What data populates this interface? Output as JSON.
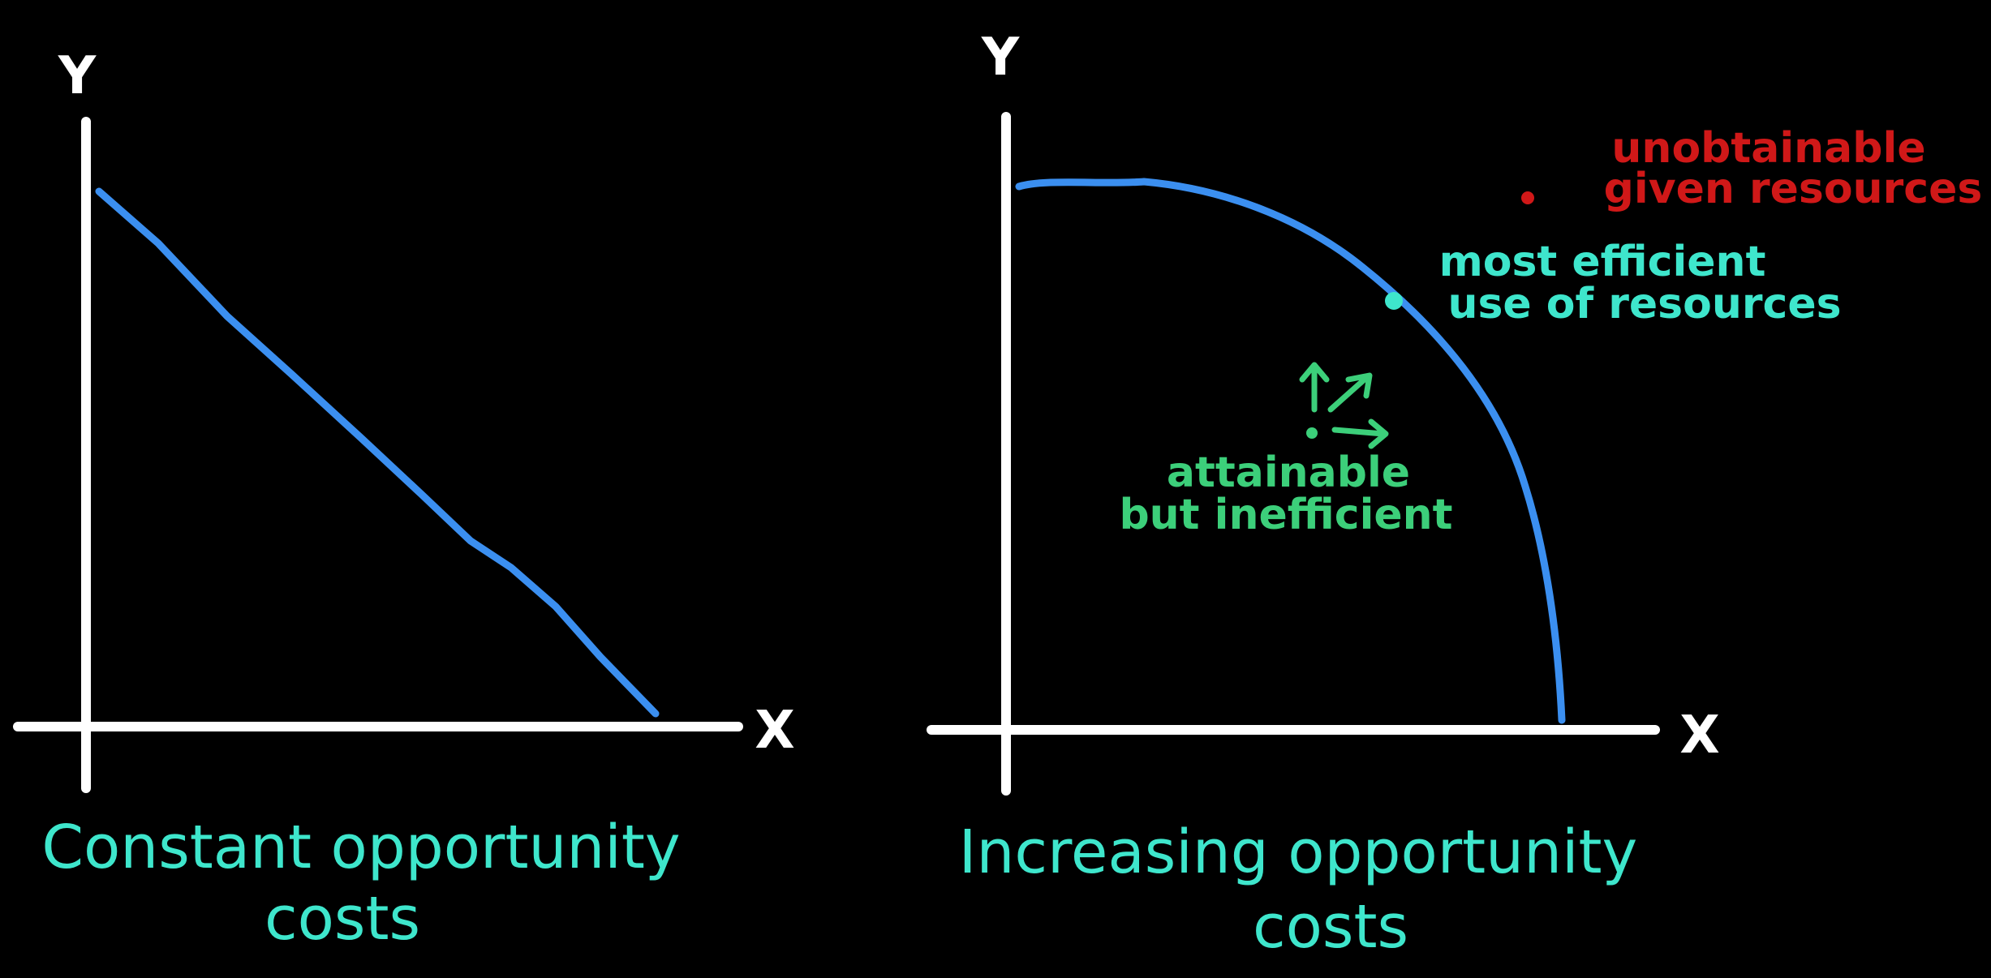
{
  "colors": {
    "background": "#000000",
    "axis": "#ffffff",
    "curve": "#3b8ff0",
    "caption": "#3ee6cc",
    "efficient": "#3ee6cc",
    "inefficient": "#3ccf7a",
    "unobtainable": "#d01818"
  },
  "left_graph": {
    "y_label": "Y",
    "x_label": "X",
    "caption_line1": "Constant opportunity",
    "caption_line2": "costs"
  },
  "right_graph": {
    "y_label": "Y",
    "x_label": "X",
    "caption_line1": "Increasing opportunity",
    "caption_line2": "costs",
    "notes": {
      "unobtainable_line1": "unobtainable",
      "unobtainable_line2": "given resources",
      "efficient_line1": "most efficient",
      "efficient_line2": "use of resources",
      "inefficient_line1": "attainable",
      "inefficient_line2": "but inefficient"
    }
  }
}
